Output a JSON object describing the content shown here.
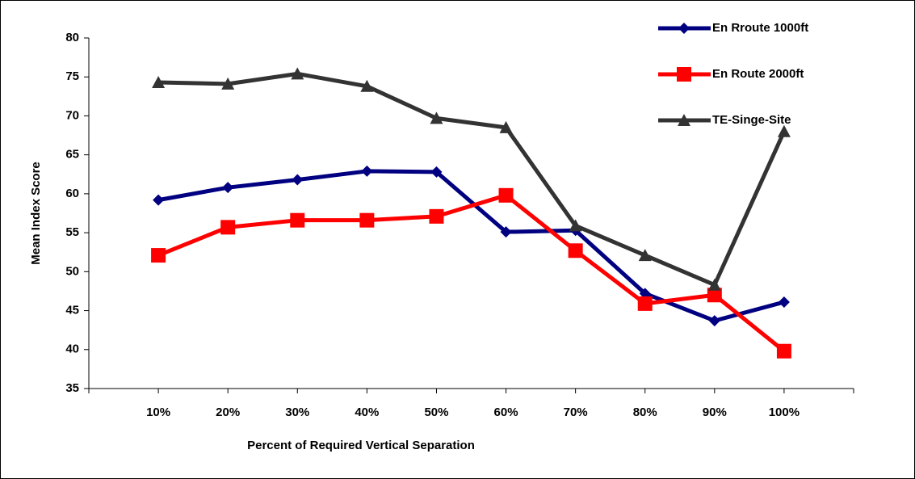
{
  "chart_data": {
    "type": "line",
    "x_label": "Percent of Required Vertical Separation",
    "y_label": "Mean Index Score",
    "categories": [
      "10%",
      "20%",
      "30%",
      "40%",
      "50%",
      "60%",
      "70%",
      "80%",
      "90%",
      "100%"
    ],
    "series": [
      {
        "name": "En Rroute 1000ft",
        "color": "#000080",
        "marker": "diamond",
        "values": [
          59.2,
          60.8,
          61.8,
          62.9,
          62.8,
          55.1,
          55.3,
          47.2,
          43.7,
          46.1
        ]
      },
      {
        "name": "En Route 2000ft",
        "color": "#ff0000",
        "marker": "square",
        "values": [
          52.1,
          55.7,
          56.6,
          56.6,
          57.1,
          59.8,
          52.7,
          45.9,
          47.0,
          39.8
        ]
      },
      {
        "name": "TE-Singe-Site",
        "color": "#333333",
        "marker": "triangle",
        "values": [
          74.3,
          74.1,
          75.4,
          73.8,
          69.7,
          68.5,
          55.9,
          52.1,
          48.3,
          68.0
        ]
      }
    ],
    "ylim": [
      35,
      80
    ],
    "yticks": [
      35,
      40,
      45,
      50,
      55,
      60,
      65,
      70,
      75,
      80
    ],
    "grid": false,
    "legend": "top-right"
  }
}
